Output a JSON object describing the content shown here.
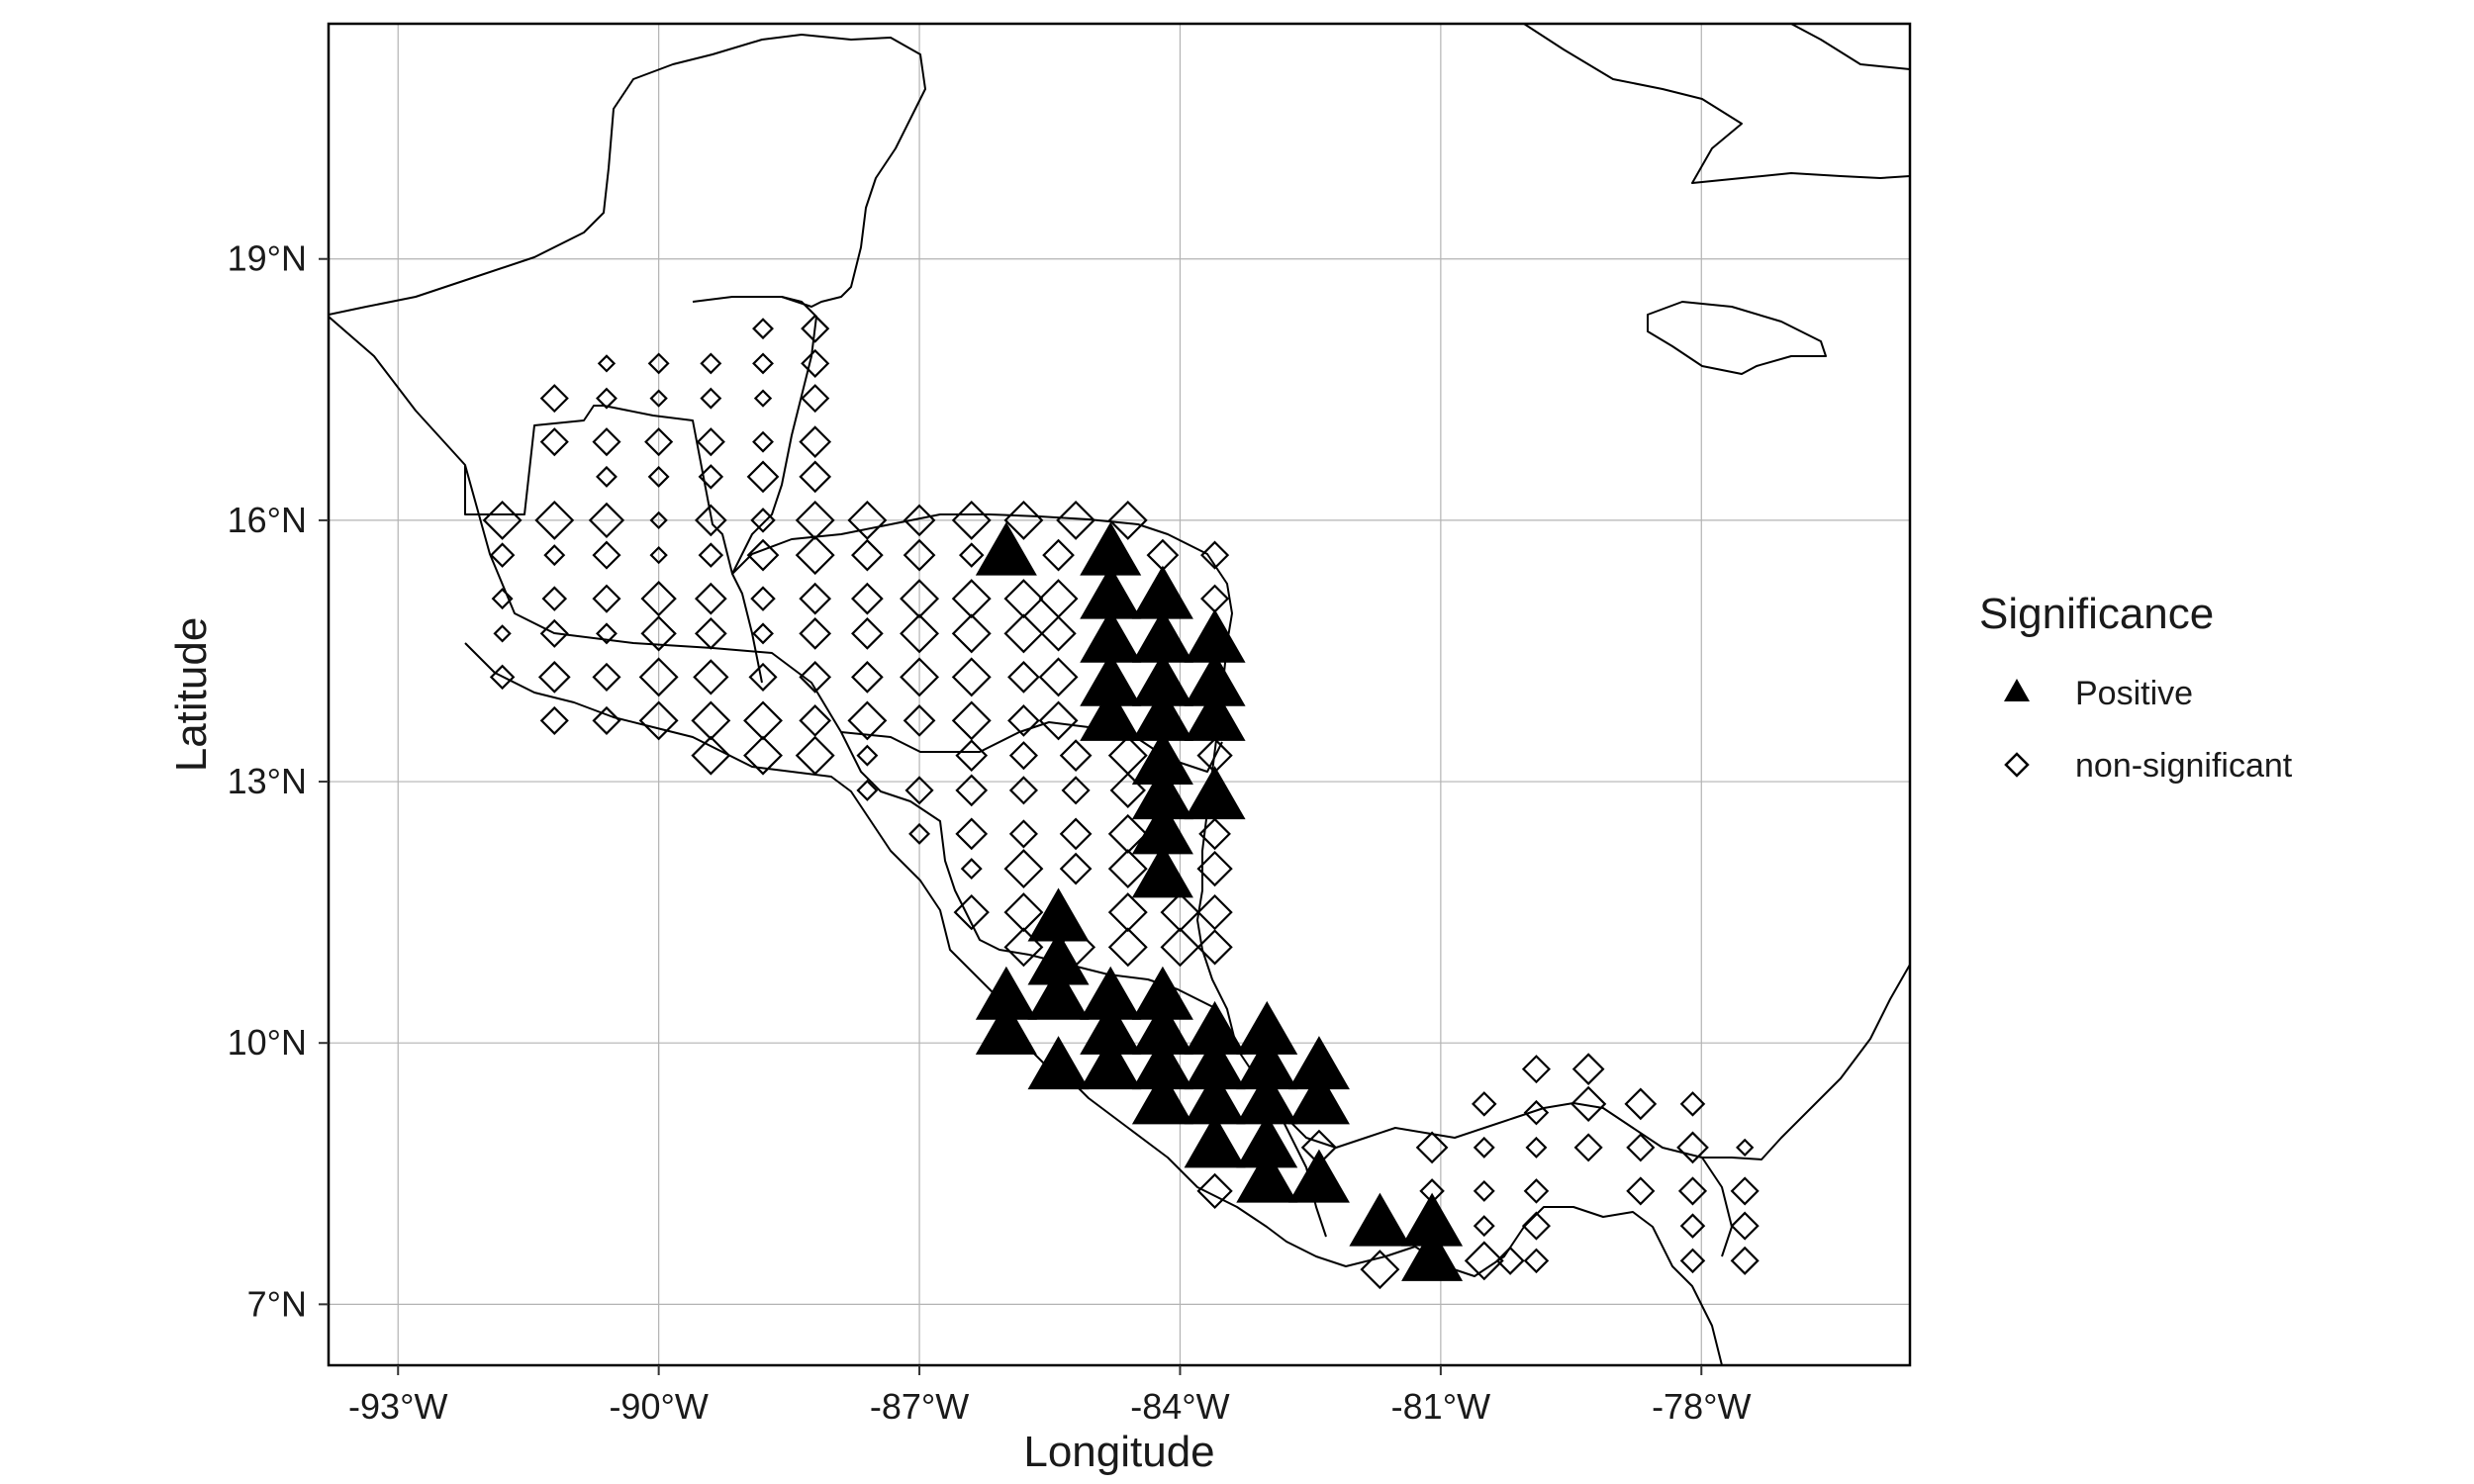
{
  "chart_data": {
    "type": "scatter",
    "subtype": "map",
    "xlabel": "Longitude",
    "ylabel": "Latitude",
    "xlim": [
      -93.8,
      -75.6
    ],
    "ylim": [
      6.3,
      21.7
    ],
    "x_ticks": [
      -93,
      -90,
      -87,
      -84,
      -81,
      -78
    ],
    "x_tick_labels": [
      "-93°W",
      "-90°W",
      "-87°W",
      "-84°W",
      "-81°W",
      "-78°W"
    ],
    "y_ticks": [
      7,
      10,
      13,
      16,
      19
    ],
    "y_tick_labels": [
      "7°N",
      "10°N",
      "13°N",
      "16°N",
      "19°N"
    ],
    "grid": true,
    "legend": {
      "title": "Significance",
      "placement": "right",
      "entries": [
        {
          "label": "Positive",
          "marker": "filled-triangle"
        },
        {
          "label": "non-significant",
          "marker": "open-diamond"
        }
      ]
    },
    "series": [
      {
        "name": "Positive",
        "marker": "filled-triangle",
        "color": "#000000",
        "points": [
          [
            -86.0,
            15.6
          ],
          [
            -84.8,
            15.6
          ],
          [
            -84.8,
            15.1
          ],
          [
            -84.2,
            15.1
          ],
          [
            -84.8,
            14.6
          ],
          [
            -84.2,
            14.6
          ],
          [
            -83.6,
            14.6
          ],
          [
            -84.8,
            14.1
          ],
          [
            -84.2,
            14.1
          ],
          [
            -83.6,
            14.1
          ],
          [
            -84.8,
            13.7
          ],
          [
            -84.2,
            13.7
          ],
          [
            -83.6,
            13.7
          ],
          [
            -84.2,
            13.2
          ],
          [
            -84.2,
            12.8
          ],
          [
            -83.6,
            12.8
          ],
          [
            -84.2,
            12.4
          ],
          [
            -84.2,
            11.9
          ],
          [
            -85.4,
            11.4
          ],
          [
            -85.4,
            10.9
          ],
          [
            -86.0,
            10.5
          ],
          [
            -85.4,
            10.5
          ],
          [
            -84.8,
            10.5
          ],
          [
            -84.2,
            10.5
          ],
          [
            -86.0,
            10.1
          ],
          [
            -84.8,
            10.1
          ],
          [
            -84.2,
            10.1
          ],
          [
            -83.6,
            10.1
          ],
          [
            -83.0,
            10.1
          ],
          [
            -85.4,
            9.7
          ],
          [
            -84.8,
            9.7
          ],
          [
            -84.2,
            9.7
          ],
          [
            -83.6,
            9.7
          ],
          [
            -83.0,
            9.7
          ],
          [
            -82.4,
            9.7
          ],
          [
            -84.2,
            9.3
          ],
          [
            -83.6,
            9.3
          ],
          [
            -83.0,
            9.3
          ],
          [
            -82.4,
            9.3
          ],
          [
            -83.6,
            8.8
          ],
          [
            -83.0,
            8.8
          ],
          [
            -83.0,
            8.4
          ],
          [
            -82.4,
            8.4
          ],
          [
            -81.7,
            7.9
          ],
          [
            -81.1,
            7.9
          ],
          [
            -81.1,
            7.5
          ]
        ]
      },
      {
        "name": "non-significant",
        "marker": "open-diamond",
        "color": "#000000",
        "points": [
          [
            -88.8,
            18.2,
            0.3
          ],
          [
            -88.2,
            18.2,
            0.5
          ],
          [
            -90.6,
            17.8,
            0.2
          ],
          [
            -90.0,
            17.8,
            0.3
          ],
          [
            -89.4,
            17.8,
            0.3
          ],
          [
            -88.8,
            17.8,
            0.3
          ],
          [
            -88.2,
            17.8,
            0.5
          ],
          [
            -91.2,
            17.4,
            0.5
          ],
          [
            -90.6,
            17.4,
            0.3
          ],
          [
            -90.0,
            17.4,
            0.2
          ],
          [
            -89.4,
            17.4,
            0.3
          ],
          [
            -88.8,
            17.4,
            0.2
          ],
          [
            -88.2,
            17.4,
            0.5
          ],
          [
            -91.2,
            16.9,
            0.5
          ],
          [
            -90.6,
            16.9,
            0.5
          ],
          [
            -90.0,
            16.9,
            0.5
          ],
          [
            -89.4,
            16.9,
            0.5
          ],
          [
            -88.8,
            16.9,
            0.3
          ],
          [
            -88.2,
            16.9,
            0.6
          ],
          [
            -90.6,
            16.5,
            0.3
          ],
          [
            -90.0,
            16.5,
            0.3
          ],
          [
            -89.4,
            16.5,
            0.4
          ],
          [
            -88.8,
            16.5,
            0.6
          ],
          [
            -88.2,
            16.5,
            0.6
          ],
          [
            -91.8,
            16.0,
            0.8
          ],
          [
            -91.2,
            16.0,
            0.8
          ],
          [
            -90.6,
            16.0,
            0.7
          ],
          [
            -90.0,
            16.0,
            0.2
          ],
          [
            -89.4,
            16.0,
            0.6
          ],
          [
            -88.8,
            16.0,
            0.4
          ],
          [
            -88.2,
            16.0,
            0.8
          ],
          [
            -87.6,
            16.0,
            0.8
          ],
          [
            -87.0,
            16.0,
            0.6
          ],
          [
            -86.4,
            16.0,
            0.8
          ],
          [
            -85.8,
            16.0,
            0.8
          ],
          [
            -85.2,
            16.0,
            0.8
          ],
          [
            -84.6,
            16.0,
            0.8
          ],
          [
            -91.8,
            15.6,
            0.4
          ],
          [
            -91.2,
            15.6,
            0.3
          ],
          [
            -90.6,
            15.6,
            0.5
          ],
          [
            -90.0,
            15.6,
            0.2
          ],
          [
            -89.4,
            15.6,
            0.4
          ],
          [
            -88.8,
            15.6,
            0.6
          ],
          [
            -88.2,
            15.6,
            0.8
          ],
          [
            -87.6,
            15.6,
            0.6
          ],
          [
            -87.0,
            15.6,
            0.6
          ],
          [
            -86.4,
            15.6,
            0.4
          ],
          [
            -85.4,
            15.6,
            0.6
          ],
          [
            -84.2,
            15.6,
            0.6
          ],
          [
            -83.6,
            15.6,
            0.5
          ],
          [
            -91.8,
            15.1,
            0.3
          ],
          [
            -91.2,
            15.1,
            0.4
          ],
          [
            -90.6,
            15.1,
            0.5
          ],
          [
            -90.0,
            15.1,
            0.7
          ],
          [
            -89.4,
            15.1,
            0.6
          ],
          [
            -88.8,
            15.1,
            0.4
          ],
          [
            -88.2,
            15.1,
            0.6
          ],
          [
            -87.6,
            15.1,
            0.6
          ],
          [
            -87.0,
            15.1,
            0.8
          ],
          [
            -86.4,
            15.1,
            0.8
          ],
          [
            -85.8,
            15.1,
            0.8
          ],
          [
            -85.4,
            15.1,
            0.8
          ],
          [
            -83.6,
            15.1,
            0.5
          ],
          [
            -91.8,
            14.7,
            0.2
          ],
          [
            -91.2,
            14.7,
            0.5
          ],
          [
            -90.6,
            14.7,
            0.3
          ],
          [
            -90.0,
            14.7,
            0.7
          ],
          [
            -89.4,
            14.7,
            0.6
          ],
          [
            -88.8,
            14.7,
            0.3
          ],
          [
            -88.2,
            14.7,
            0.6
          ],
          [
            -87.6,
            14.7,
            0.6
          ],
          [
            -87.0,
            14.7,
            0.8
          ],
          [
            -86.4,
            14.7,
            0.8
          ],
          [
            -85.8,
            14.7,
            0.8
          ],
          [
            -85.4,
            14.7,
            0.7
          ],
          [
            -91.8,
            14.2,
            0.4
          ],
          [
            -91.2,
            14.2,
            0.6
          ],
          [
            -90.6,
            14.2,
            0.5
          ],
          [
            -90.0,
            14.2,
            0.8
          ],
          [
            -89.4,
            14.2,
            0.7
          ],
          [
            -88.8,
            14.2,
            0.5
          ],
          [
            -88.2,
            14.2,
            0.6
          ],
          [
            -87.6,
            14.2,
            0.6
          ],
          [
            -87.0,
            14.2,
            0.8
          ],
          [
            -86.4,
            14.2,
            0.8
          ],
          [
            -85.8,
            14.2,
            0.6
          ],
          [
            -85.4,
            14.2,
            0.8
          ],
          [
            -91.2,
            13.7,
            0.5
          ],
          [
            -90.6,
            13.7,
            0.5
          ],
          [
            -90.0,
            13.7,
            0.8
          ],
          [
            -89.4,
            13.7,
            0.8
          ],
          [
            -88.8,
            13.7,
            0.8
          ],
          [
            -88.2,
            13.7,
            0.6
          ],
          [
            -87.6,
            13.7,
            0.8
          ],
          [
            -87.0,
            13.7,
            0.6
          ],
          [
            -86.4,
            13.7,
            0.8
          ],
          [
            -85.8,
            13.7,
            0.6
          ],
          [
            -85.4,
            13.7,
            0.8
          ],
          [
            -89.4,
            13.3,
            0.8
          ],
          [
            -88.8,
            13.3,
            0.8
          ],
          [
            -88.2,
            13.3,
            0.8
          ],
          [
            -87.6,
            13.3,
            0.3
          ],
          [
            -86.4,
            13.3,
            0.6
          ],
          [
            -85.8,
            13.3,
            0.5
          ],
          [
            -85.2,
            13.3,
            0.6
          ],
          [
            -84.6,
            13.3,
            0.8
          ],
          [
            -83.6,
            13.3,
            0.7
          ],
          [
            -87.6,
            12.9,
            0.3
          ],
          [
            -87.0,
            12.9,
            0.5
          ],
          [
            -86.4,
            12.9,
            0.6
          ],
          [
            -85.8,
            12.9,
            0.5
          ],
          [
            -85.2,
            12.9,
            0.5
          ],
          [
            -84.6,
            12.9,
            0.7
          ],
          [
            -87.0,
            12.4,
            0.3
          ],
          [
            -86.4,
            12.4,
            0.6
          ],
          [
            -85.8,
            12.4,
            0.5
          ],
          [
            -85.2,
            12.4,
            0.6
          ],
          [
            -84.6,
            12.4,
            0.8
          ],
          [
            -83.6,
            12.4,
            0.6
          ],
          [
            -86.4,
            12.0,
            0.3
          ],
          [
            -85.8,
            12.0,
            0.8
          ],
          [
            -85.2,
            12.0,
            0.6
          ],
          [
            -84.6,
            12.0,
            0.8
          ],
          [
            -83.6,
            12.0,
            0.7
          ],
          [
            -86.4,
            11.5,
            0.7
          ],
          [
            -85.8,
            11.5,
            0.8
          ],
          [
            -84.6,
            11.5,
            0.8
          ],
          [
            -84.0,
            11.5,
            0.8
          ],
          [
            -83.6,
            11.5,
            0.7
          ],
          [
            -85.8,
            11.1,
            0.8
          ],
          [
            -85.2,
            11.1,
            0.8
          ],
          [
            -84.6,
            11.1,
            0.8
          ],
          [
            -84.0,
            11.1,
            0.8
          ],
          [
            -83.6,
            11.1,
            0.7
          ],
          [
            -82.4,
            8.8,
            0.7
          ],
          [
            -81.1,
            8.8,
            0.6
          ],
          [
            -80.5,
            9.3,
            0.4
          ],
          [
            -79.9,
            9.7,
            0.5
          ],
          [
            -79.3,
            9.7,
            0.6
          ],
          [
            -79.3,
            9.3,
            0.7
          ],
          [
            -78.7,
            9.3,
            0.6
          ],
          [
            -78.1,
            9.3,
            0.4
          ],
          [
            -79.9,
            9.2,
            0.4
          ],
          [
            -80.5,
            8.8,
            0.3
          ],
          [
            -79.9,
            8.8,
            0.3
          ],
          [
            -79.3,
            8.8,
            0.5
          ],
          [
            -78.7,
            8.8,
            0.5
          ],
          [
            -78.1,
            8.8,
            0.6
          ],
          [
            -77.5,
            8.8,
            0.2
          ],
          [
            -83.6,
            8.3,
            0.7
          ],
          [
            -81.1,
            8.3,
            0.4
          ],
          [
            -80.5,
            8.3,
            0.3
          ],
          [
            -79.9,
            8.3,
            0.4
          ],
          [
            -78.7,
            8.3,
            0.5
          ],
          [
            -78.1,
            8.3,
            0.5
          ],
          [
            -77.5,
            8.3,
            0.5
          ],
          [
            -80.5,
            7.9,
            0.3
          ],
          [
            -79.9,
            7.9,
            0.5
          ],
          [
            -78.1,
            7.9,
            0.4
          ],
          [
            -77.5,
            7.9,
            0.5
          ],
          [
            -81.7,
            7.4,
            0.8
          ],
          [
            -80.5,
            7.5,
            0.8
          ],
          [
            -80.2,
            7.5,
            0.5
          ],
          [
            -79.9,
            7.5,
            0.4
          ],
          [
            -78.1,
            7.5,
            0.4
          ],
          [
            -77.5,
            7.5,
            0.5
          ]
        ]
      }
    ]
  }
}
